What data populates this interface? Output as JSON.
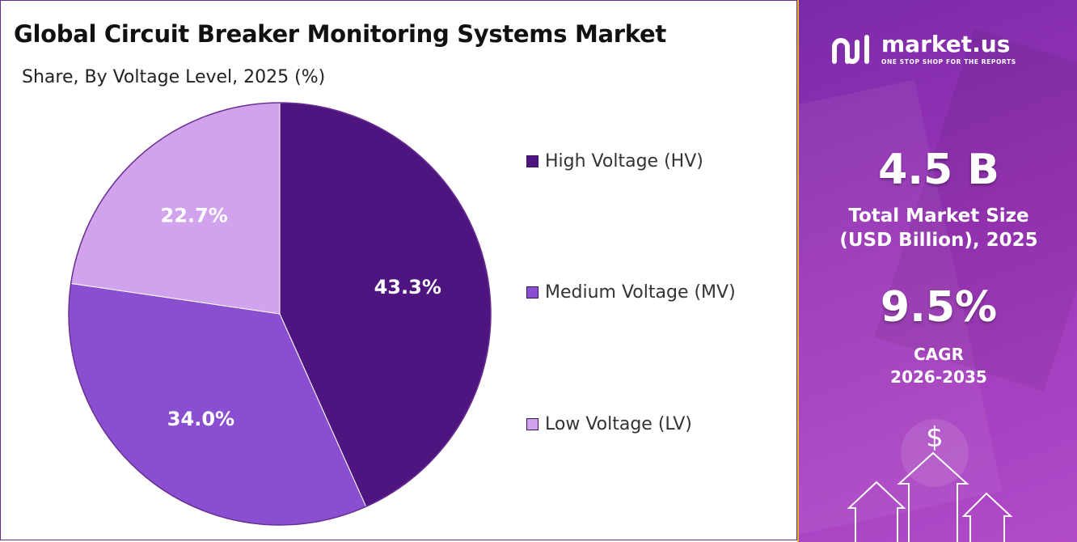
{
  "header": {
    "title": "Global Circuit Breaker Monitoring Systems Market",
    "subtitle": "Share, By Voltage Level, 2025 (%)"
  },
  "chart_data": {
    "type": "pie",
    "title": "Global Circuit Breaker Monitoring Systems Market",
    "subtitle": "Share, By Voltage Level, 2025 (%)",
    "categories": [
      "High Voltage (HV)",
      "Medium Voltage (MV)",
      "Low Voltage (LV)"
    ],
    "values": [
      43.3,
      34.0,
      22.7
    ],
    "value_labels": [
      "43.3%",
      "34.0%",
      "22.7%"
    ],
    "colors": [
      "#4e1580",
      "#8a4fd0",
      "#d0a3ec"
    ],
    "legend_position": "right"
  },
  "sidebar": {
    "brand_name": "market.us",
    "brand_tagline": "ONE STOP SHOP FOR THE REPORTS",
    "market_size_value": "4.5 B",
    "market_size_label_line1": "Total Market Size",
    "market_size_label_line2": "(USD Billion), 2025",
    "cagr_value": "9.5%",
    "cagr_label_line1": "CAGR",
    "cagr_label_line2": "2026-2035",
    "dollar_symbol": "$",
    "icons": [
      "market-us-logo-icon",
      "dollar-icon",
      "up-arrow-icon"
    ]
  }
}
